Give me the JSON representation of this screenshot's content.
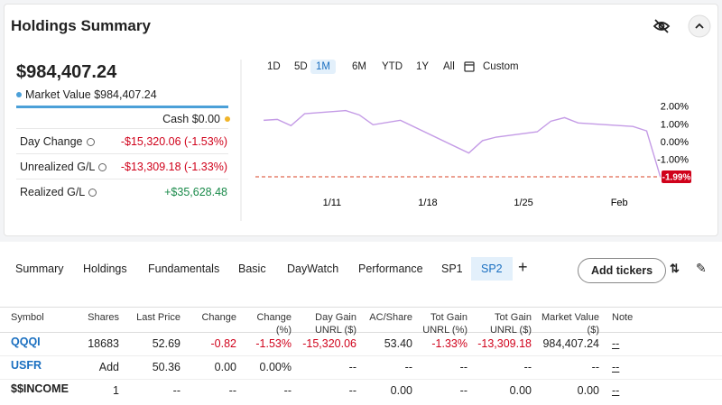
{
  "header": {
    "title": "Holdings Summary"
  },
  "summary": {
    "total": "$984,407.24",
    "market_value": "Market Value $984,407.24",
    "cash": "Cash $0.00",
    "rows": [
      {
        "label": "Day Change",
        "value": "-$15,320.06 (-1.53%)"
      },
      {
        "label": "Unrealized G/L",
        "value": "-$13,309.18 (-1.33%)"
      },
      {
        "label": "Realized G/L",
        "value": "+$35,628.48"
      }
    ]
  },
  "ranges": {
    "buttons": [
      "1D",
      "5D",
      "1M",
      "6M",
      "YTD",
      "1Y",
      "All",
      "Custom"
    ],
    "active": 2
  },
  "chart_data": {
    "type": "line",
    "color": "#c49be6",
    "x": [
      6,
      7,
      8,
      9,
      12,
      13,
      14,
      16,
      21,
      22,
      23,
      26,
      27,
      28,
      29,
      33,
      34,
      35
    ],
    "values": [
      1.2,
      1.25,
      0.9,
      1.57,
      1.75,
      1.5,
      0.95,
      1.2,
      -0.65,
      0.05,
      0.25,
      0.55,
      1.15,
      1.35,
      1.05,
      0.85,
      0.6,
      -1.99
    ],
    "xlim": [
      5.4,
      37.2
    ],
    "ylim": [
      -2.45,
      2.9
    ],
    "xticks": [
      {
        "value": 11,
        "label": "1/11"
      },
      {
        "value": 18,
        "label": "1/18"
      },
      {
        "value": 25,
        "label": "1/25"
      },
      {
        "value": 32,
        "label": "Feb"
      }
    ],
    "yticks": [
      {
        "value": 2,
        "label": "2.00%"
      },
      {
        "value": 1,
        "label": "1.00%"
      },
      {
        "value": 0,
        "label": "0.00%"
      },
      {
        "value": -1,
        "label": "-1.00%"
      }
    ],
    "reference_line": {
      "value": -1.99,
      "label": "-1.99%",
      "color": "#e0684f"
    }
  },
  "tabs": {
    "items": [
      "Summary",
      "Holdings",
      "Fundamentals",
      "Basic",
      "DayWatch",
      "Performance",
      "SP1",
      "SP2"
    ],
    "active": 7,
    "add_button": "Add tickers"
  },
  "table": {
    "columns": [
      "Symbol",
      "Shares",
      "Last Price",
      "Change",
      "Change (%)",
      "Day Gain UNRL ($)",
      "AC/Share",
      "Tot Gain UNRL (%)",
      "Tot Gain UNRL ($)",
      "Market Value ($)",
      "Note"
    ],
    "rows": [
      [
        "QQQI",
        "18683",
        "52.69",
        "-0.82",
        "-1.53%",
        "-15,320.06",
        "53.40",
        "-1.33%",
        "-13,309.18",
        "984,407.24",
        "--"
      ],
      [
        "USFR",
        "Add",
        "50.36",
        "0.00",
        "0.00%",
        "--",
        "--",
        "--",
        "--",
        "--",
        "--"
      ],
      [
        "$$INCOME",
        "1",
        "--",
        "--",
        "--",
        "--",
        "0.00",
        "--",
        "0.00",
        "0.00",
        "--"
      ]
    ]
  }
}
